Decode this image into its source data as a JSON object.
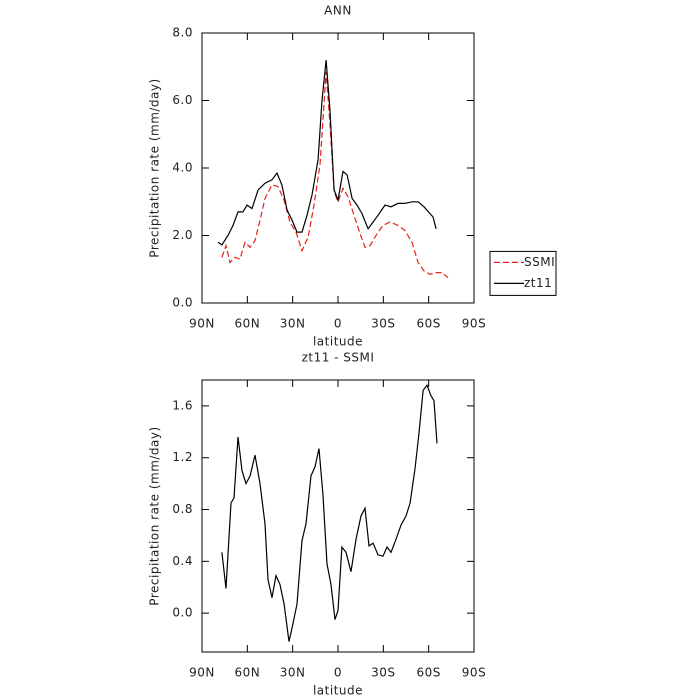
{
  "chart_data": [
    {
      "type": "line",
      "title": "ANN",
      "x_label": "latitude",
      "y_label": "Precipitation rate (mm/day)",
      "xlim": [
        90,
        -90
      ],
      "xticks": [
        {
          "value": 90,
          "label": "90N"
        },
        {
          "value": 60,
          "label": "60N"
        },
        {
          "value": 30,
          "label": "30N"
        },
        0,
        {
          "value": -30,
          "label": "30S"
        },
        {
          "value": -60,
          "label": "60S"
        },
        {
          "value": -90,
          "label": "90S"
        }
      ],
      "ylim": [
        0,
        8
      ],
      "yticks": [
        {
          "value": 0,
          "label": "0.0"
        },
        {
          "value": 2,
          "label": "2.0"
        },
        {
          "value": 4,
          "label": "4.0"
        },
        {
          "value": 6,
          "label": "6.0"
        },
        {
          "value": 8,
          "label": "8.0"
        }
      ],
      "legend": "right",
      "series": [
        {
          "name": "SSMI",
          "color": "#e8201c",
          "dash": true,
          "x": [
            76.8,
            74.1,
            71.5,
            68.2,
            64.9,
            61.5,
            58.2,
            54.9,
            51.6,
            48.3,
            43.7,
            39.7,
            35.7,
            31.8,
            27.8,
            23.8,
            19.8,
            15.9,
            11.9,
            7.9,
            5.3,
            2.6,
            0,
            -3.3,
            -6.6,
            -10.6,
            -14.6,
            -17.9,
            -21.2,
            -25.8,
            -29.8,
            -34.4,
            -39.7,
            -44.3,
            -49.0,
            -53.0,
            -56.9,
            -60.9,
            -64.9,
            -68.8,
            -72.8
          ],
          "values": [
            1.35,
            1.7,
            1.2,
            1.35,
            1.3,
            1.8,
            1.65,
            1.85,
            2.45,
            3.1,
            3.5,
            3.45,
            3.05,
            2.4,
            2.1,
            1.55,
            1.95,
            2.9,
            4.1,
            6.85,
            5.3,
            3.3,
            3.0,
            3.4,
            3.15,
            2.6,
            2.05,
            1.65,
            1.7,
            2.05,
            2.3,
            2.4,
            2.3,
            2.15,
            1.8,
            1.2,
            0.95,
            0.85,
            0.9,
            0.9,
            0.75
          ]
        },
        {
          "name": "zt11",
          "color": "#000000",
          "dash": false,
          "x": [
            79.4,
            76.8,
            72.8,
            69.5,
            66.2,
            62.9,
            60.2,
            56.9,
            52.9,
            48.3,
            43.7,
            40.4,
            37.1,
            33.7,
            30.4,
            27.1,
            23.8,
            20.5,
            17.2,
            13.2,
            10.6,
            7.9,
            5.3,
            2.6,
            0,
            -3.3,
            -6.0,
            -9.3,
            -12.6,
            -15.9,
            -19.9,
            -23.2,
            -26.5,
            -31.1,
            -35.1,
            -39.7,
            -44.3,
            -49.0,
            -53.0,
            -56.9,
            -60.9,
            -62.9,
            -64.9
          ],
          "values": [
            1.8,
            1.72,
            2.0,
            2.3,
            2.7,
            2.7,
            2.9,
            2.8,
            3.35,
            3.55,
            3.65,
            3.85,
            3.5,
            2.75,
            2.45,
            2.1,
            2.1,
            2.6,
            3.2,
            4.25,
            6.0,
            7.2,
            5.7,
            3.35,
            3.05,
            3.9,
            3.8,
            3.1,
            2.9,
            2.65,
            2.2,
            2.4,
            2.6,
            2.9,
            2.85,
            2.95,
            2.95,
            3.0,
            3.0,
            2.85,
            2.65,
            2.55,
            2.2
          ]
        }
      ]
    },
    {
      "type": "line",
      "title": "zt11 - SSMI",
      "x_label": "latitude",
      "y_label": "Precipitation rate (mm/day)",
      "xlim": [
        90,
        -90
      ],
      "xticks": [
        {
          "value": 90,
          "label": "90N"
        },
        {
          "value": 60,
          "label": "60N"
        },
        {
          "value": 30,
          "label": "30N"
        },
        0,
        {
          "value": -30,
          "label": "30S"
        },
        {
          "value": -60,
          "label": "60S"
        },
        {
          "value": -90,
          "label": "90S"
        }
      ],
      "ylim": [
        -0.3,
        1.8
      ],
      "yticks": [
        {
          "value": 0,
          "label": "0.0"
        },
        {
          "value": 0.4,
          "label": "0.4"
        },
        {
          "value": 0.8,
          "label": "0.8"
        },
        {
          "value": 1.2,
          "label": "1.2"
        },
        {
          "value": 1.6,
          "label": "1.6"
        }
      ],
      "color": "#000000",
      "x": [
        76.8,
        74.1,
        70.8,
        68.8,
        66.2,
        63.5,
        60.9,
        58.2,
        54.9,
        51.6,
        48.3,
        46.3,
        43.7,
        41.0,
        38.4,
        35.7,
        32.4,
        29.8,
        27.1,
        23.8,
        21.2,
        17.9,
        15.2,
        12.6,
        9.9,
        7.3,
        4.6,
        2.0,
        0,
        -2.6,
        -5.3,
        -8.6,
        -11.9,
        -15.2,
        -17.9,
        -20.5,
        -23.2,
        -26.5,
        -29.8,
        -32.4,
        -35.1,
        -38.4,
        -41.7,
        -45.0,
        -47.7,
        -51.0,
        -53.6,
        -56.3,
        -58.9,
        -61.5,
        -63.5,
        -65.5
      ],
      "values": [
        0.47,
        0.19,
        0.85,
        0.89,
        1.36,
        1.1,
        1.0,
        1.06,
        1.22,
        1.0,
        0.69,
        0.26,
        0.12,
        0.29,
        0.22,
        0.07,
        -0.22,
        -0.08,
        0.07,
        0.56,
        0.69,
        1.06,
        1.13,
        1.27,
        0.91,
        0.38,
        0.22,
        -0.05,
        0.02,
        0.51,
        0.47,
        0.32,
        0.57,
        0.75,
        0.81,
        0.52,
        0.54,
        0.45,
        0.44,
        0.51,
        0.47,
        0.57,
        0.68,
        0.75,
        0.85,
        1.12,
        1.39,
        1.72,
        1.76,
        1.68,
        1.64,
        1.31
      ]
    }
  ]
}
